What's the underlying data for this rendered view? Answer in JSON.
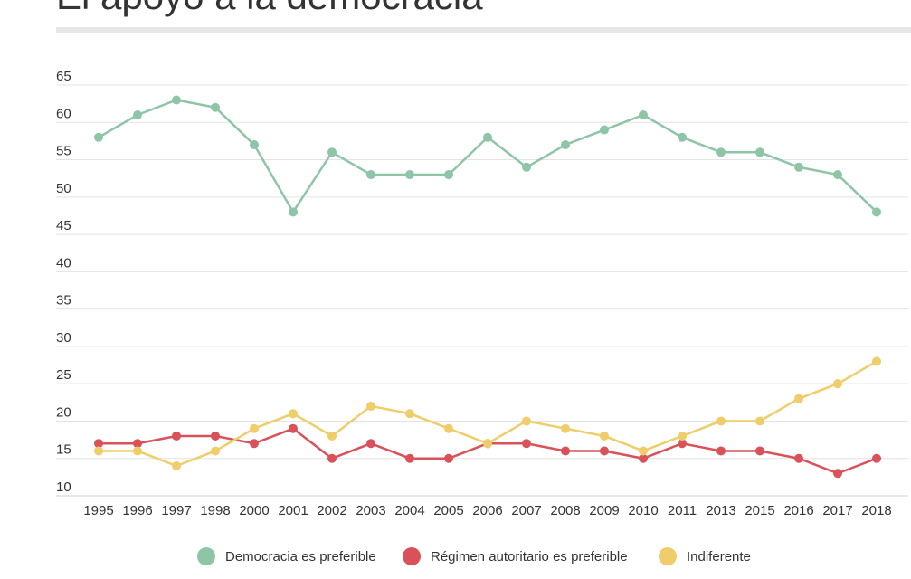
{
  "header": {
    "title": "El apoyo a la democracia"
  },
  "chart_data": {
    "type": "line",
    "title": "El apoyo a la democracia",
    "xlabel": "",
    "ylabel": "",
    "ylim": [
      10,
      65
    ],
    "yticks": [
      10,
      15,
      20,
      25,
      30,
      35,
      40,
      45,
      50,
      55,
      60,
      65
    ],
    "grid": true,
    "legend_position": "bottom",
    "categories": [
      "1995",
      "1996",
      "1997",
      "1998",
      "2000",
      "2001",
      "2002",
      "2003",
      "2004",
      "2005",
      "2006",
      "2007",
      "2008",
      "2009",
      "2010",
      "2011",
      "2013",
      "2015",
      "2016",
      "2017",
      "2018"
    ],
    "series": [
      {
        "name": "Democracia es preferible",
        "color": "#8ec5a7",
        "values": [
          58,
          61,
          63,
          62,
          57,
          48,
          56,
          53,
          53,
          53,
          58,
          54,
          57,
          59,
          61,
          58,
          56,
          56,
          54,
          53,
          48
        ]
      },
      {
        "name": "Régimen autoritario es preferible",
        "color": "#d9525a",
        "values": [
          17,
          17,
          18,
          18,
          17,
          19,
          15,
          17,
          15,
          15,
          17,
          17,
          16,
          16,
          15,
          17,
          16,
          16,
          15,
          13,
          15
        ]
      },
      {
        "name": "Indiferente",
        "color": "#efcd6a",
        "values": [
          16,
          16,
          14,
          16,
          19,
          21,
          18,
          22,
          21,
          19,
          17,
          20,
          19,
          18,
          16,
          18,
          20,
          20,
          23,
          25,
          28
        ]
      }
    ]
  }
}
